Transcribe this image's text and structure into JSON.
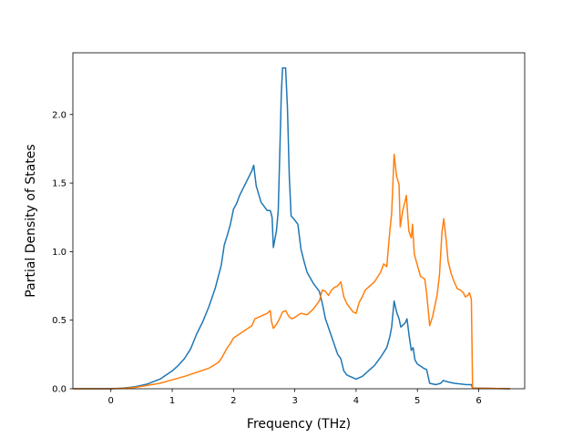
{
  "chart_data": {
    "type": "line",
    "xlabel": "Frequency (THz)",
    "ylabel": "Partial Density of States",
    "xlim": [
      -0.62,
      6.75
    ],
    "ylim": [
      0.0,
      2.45
    ],
    "xticks": [
      0,
      1,
      2,
      3,
      4,
      5,
      6
    ],
    "yticks": [
      0.0,
      0.5,
      1.0,
      1.5,
      2.0
    ],
    "xtick_labels": [
      "0",
      "1",
      "2",
      "3",
      "4",
      "5",
      "6"
    ],
    "ytick_labels": [
      "0.0",
      "0.5",
      "1.0",
      "1.5",
      "2.0"
    ],
    "grid": false,
    "legend": "none",
    "series": [
      {
        "color": "#1f77b4",
        "points": [
          [
            -0.6,
            0.0
          ],
          [
            0.0,
            0.0
          ],
          [
            0.2,
            0.005
          ],
          [
            0.4,
            0.015
          ],
          [
            0.6,
            0.035
          ],
          [
            0.8,
            0.07
          ],
          [
            1.0,
            0.13
          ],
          [
            1.1,
            0.17
          ],
          [
            1.2,
            0.22
          ],
          [
            1.3,
            0.29
          ],
          [
            1.4,
            0.4
          ],
          [
            1.5,
            0.49
          ],
          [
            1.6,
            0.6
          ],
          [
            1.7,
            0.73
          ],
          [
            1.8,
            0.9
          ],
          [
            1.85,
            1.05
          ],
          [
            1.9,
            1.12
          ],
          [
            1.95,
            1.2
          ],
          [
            2.0,
            1.31
          ],
          [
            2.05,
            1.35
          ],
          [
            2.1,
            1.41
          ],
          [
            2.2,
            1.5
          ],
          [
            2.3,
            1.59
          ],
          [
            2.33,
            1.63
          ],
          [
            2.37,
            1.48
          ],
          [
            2.45,
            1.36
          ],
          [
            2.55,
            1.3
          ],
          [
            2.6,
            1.3
          ],
          [
            2.63,
            1.25
          ],
          [
            2.65,
            1.03
          ],
          [
            2.7,
            1.15
          ],
          [
            2.73,
            1.3
          ],
          [
            2.76,
            1.8
          ],
          [
            2.78,
            2.15
          ],
          [
            2.8,
            2.34
          ],
          [
            2.85,
            2.34
          ],
          [
            2.88,
            2.05
          ],
          [
            2.91,
            1.55
          ],
          [
            2.94,
            1.26
          ],
          [
            3.0,
            1.23
          ],
          [
            3.05,
            1.2
          ],
          [
            3.1,
            1.02
          ],
          [
            3.15,
            0.93
          ],
          [
            3.2,
            0.85
          ],
          [
            3.3,
            0.77
          ],
          [
            3.4,
            0.71
          ],
          [
            3.45,
            0.62
          ],
          [
            3.5,
            0.51
          ],
          [
            3.6,
            0.38
          ],
          [
            3.7,
            0.25
          ],
          [
            3.75,
            0.22
          ],
          [
            3.8,
            0.13
          ],
          [
            3.85,
            0.1
          ],
          [
            4.0,
            0.07
          ],
          [
            4.1,
            0.09
          ],
          [
            4.2,
            0.13
          ],
          [
            4.3,
            0.17
          ],
          [
            4.4,
            0.23
          ],
          [
            4.5,
            0.3
          ],
          [
            4.55,
            0.38
          ],
          [
            4.58,
            0.45
          ],
          [
            4.62,
            0.64
          ],
          [
            4.66,
            0.56
          ],
          [
            4.7,
            0.51
          ],
          [
            4.73,
            0.45
          ],
          [
            4.8,
            0.48
          ],
          [
            4.83,
            0.51
          ],
          [
            4.87,
            0.37
          ],
          [
            4.9,
            0.28
          ],
          [
            4.93,
            0.3
          ],
          [
            4.96,
            0.21
          ],
          [
            5.0,
            0.18
          ],
          [
            5.1,
            0.15
          ],
          [
            5.15,
            0.14
          ],
          [
            5.2,
            0.04
          ],
          [
            5.3,
            0.03
          ],
          [
            5.38,
            0.04
          ],
          [
            5.42,
            0.06
          ],
          [
            5.5,
            0.05
          ],
          [
            5.6,
            0.04
          ],
          [
            5.8,
            0.03
          ],
          [
            5.88,
            0.03
          ],
          [
            5.9,
            0.005
          ],
          [
            6.5,
            0.0
          ]
        ]
      },
      {
        "color": "#ff7f0e",
        "points": [
          [
            -0.6,
            0.0
          ],
          [
            0.0,
            0.0
          ],
          [
            0.2,
            0.003
          ],
          [
            0.4,
            0.01
          ],
          [
            0.6,
            0.025
          ],
          [
            0.8,
            0.04
          ],
          [
            1.0,
            0.065
          ],
          [
            1.2,
            0.09
          ],
          [
            1.4,
            0.12
          ],
          [
            1.6,
            0.15
          ],
          [
            1.75,
            0.19
          ],
          [
            1.8,
            0.22
          ],
          [
            1.85,
            0.26
          ],
          [
            1.9,
            0.3
          ],
          [
            1.95,
            0.33
          ],
          [
            2.0,
            0.37
          ],
          [
            2.1,
            0.4
          ],
          [
            2.2,
            0.43
          ],
          [
            2.3,
            0.46
          ],
          [
            2.35,
            0.51
          ],
          [
            2.45,
            0.53
          ],
          [
            2.55,
            0.55
          ],
          [
            2.6,
            0.57
          ],
          [
            2.62,
            0.49
          ],
          [
            2.65,
            0.44
          ],
          [
            2.7,
            0.47
          ],
          [
            2.75,
            0.51
          ],
          [
            2.8,
            0.56
          ],
          [
            2.85,
            0.57
          ],
          [
            2.9,
            0.53
          ],
          [
            2.95,
            0.51
          ],
          [
            3.0,
            0.52
          ],
          [
            3.1,
            0.55
          ],
          [
            3.2,
            0.54
          ],
          [
            3.3,
            0.58
          ],
          [
            3.4,
            0.64
          ],
          [
            3.45,
            0.72
          ],
          [
            3.5,
            0.71
          ],
          [
            3.55,
            0.68
          ],
          [
            3.6,
            0.72
          ],
          [
            3.65,
            0.74
          ],
          [
            3.7,
            0.75
          ],
          [
            3.75,
            0.78
          ],
          [
            3.8,
            0.67
          ],
          [
            3.85,
            0.62
          ],
          [
            3.9,
            0.59
          ],
          [
            3.95,
            0.56
          ],
          [
            4.0,
            0.55
          ],
          [
            4.05,
            0.63
          ],
          [
            4.1,
            0.67
          ],
          [
            4.15,
            0.72
          ],
          [
            4.2,
            0.74
          ],
          [
            4.3,
            0.78
          ],
          [
            4.4,
            0.85
          ],
          [
            4.45,
            0.91
          ],
          [
            4.5,
            0.89
          ],
          [
            4.55,
            1.15
          ],
          [
            4.58,
            1.28
          ],
          [
            4.62,
            1.71
          ],
          [
            4.66,
            1.55
          ],
          [
            4.7,
            1.49
          ],
          [
            4.72,
            1.18
          ],
          [
            4.76,
            1.3
          ],
          [
            4.8,
            1.37
          ],
          [
            4.82,
            1.41
          ],
          [
            4.86,
            1.15
          ],
          [
            4.9,
            1.1
          ],
          [
            4.92,
            1.2
          ],
          [
            4.95,
            0.98
          ],
          [
            5.0,
            0.9
          ],
          [
            5.05,
            0.82
          ],
          [
            5.12,
            0.8
          ],
          [
            5.15,
            0.7
          ],
          [
            5.2,
            0.46
          ],
          [
            5.25,
            0.53
          ],
          [
            5.32,
            0.68
          ],
          [
            5.36,
            0.83
          ],
          [
            5.4,
            1.14
          ],
          [
            5.43,
            1.24
          ],
          [
            5.47,
            1.08
          ],
          [
            5.5,
            0.93
          ],
          [
            5.55,
            0.84
          ],
          [
            5.6,
            0.78
          ],
          [
            5.65,
            0.73
          ],
          [
            5.7,
            0.72
          ],
          [
            5.75,
            0.7
          ],
          [
            5.78,
            0.67
          ],
          [
            5.82,
            0.68
          ],
          [
            5.85,
            0.7
          ],
          [
            5.88,
            0.65
          ],
          [
            5.9,
            0.005
          ],
          [
            6.5,
            0.0
          ]
        ]
      }
    ]
  }
}
